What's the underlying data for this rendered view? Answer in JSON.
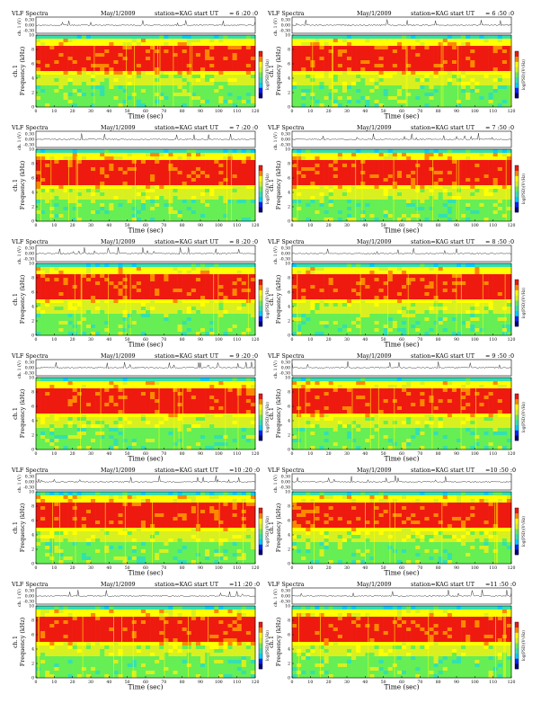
{
  "chart_data": {
    "type": "heatmap",
    "common": {
      "title_left": "VLF Spectra",
      "date": "May/1/2009",
      "station": "station=KAG",
      "start_prefix": "start  UT",
      "top_ylabel": "ch. 1 (V)",
      "top_yticks": [
        "0.30",
        "0.00",
        "-0.30"
      ],
      "ylabel_ch": "ch.1",
      "ylabel": "Frequency  (kHz)",
      "xlabel": "Time  (sec)",
      "colorbar_label": "log(PSD)(V²/Hz)",
      "xticks": [
        0,
        10,
        20,
        30,
        40,
        50,
        60,
        70,
        80,
        90,
        100,
        110,
        120
      ],
      "yticks": [
        0,
        2,
        4,
        6,
        8,
        10
      ],
      "xlim": [
        0,
        120
      ],
      "ylim": [
        0,
        10
      ],
      "colors": [
        "#00007a",
        "#0022ff",
        "#00ccff",
        "#33e0b0",
        "#66ee55",
        "#d8f020",
        "#ffff00",
        "#ff8800",
        "#ee1a10"
      ]
    },
    "panels": [
      {
        "start": "= 6 :20 :0"
      },
      {
        "start": "= 6 :50 :0"
      },
      {
        "start": "= 7 :20 :0"
      },
      {
        "start": "= 7 :50 :0"
      },
      {
        "start": "= 8 :20 :0"
      },
      {
        "start": "= 8 :50 :0"
      },
      {
        "start": "= 9 :20 :0"
      },
      {
        "start": "= 9 :50 :0"
      },
      {
        "start": "=10 :20 :0"
      },
      {
        "start": "=10 :50 :0"
      },
      {
        "start": "=11 :20 :0"
      },
      {
        "start": "=11 :50 :0"
      }
    ]
  }
}
